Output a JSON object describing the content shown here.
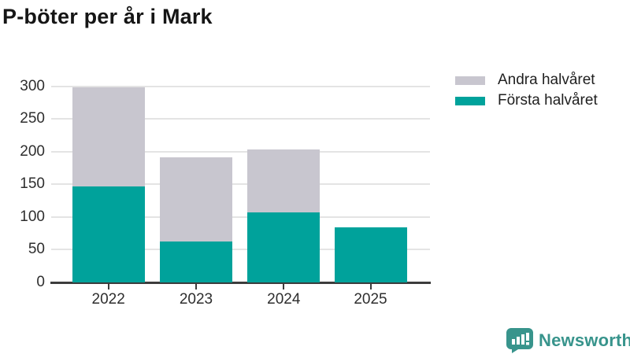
{
  "title": "P-böter per år i Mark",
  "legend": [
    {
      "label": "Andra halvåret",
      "color": "#c8c6cf"
    },
    {
      "label": "Första halvåret",
      "color": "#00a29b"
    }
  ],
  "chart_data": {
    "type": "bar",
    "stacked": true,
    "title": "P-böter per år i Mark",
    "categories": [
      "2022",
      "2023",
      "2024",
      "2025"
    ],
    "series": [
      {
        "name": "Första halvåret",
        "color": "#00a29b",
        "values": [
          147,
          63,
          107,
          85
        ]
      },
      {
        "name": "Andra halvåret",
        "color": "#c8c6cf",
        "values": [
          153,
          129,
          97,
          0
        ]
      }
    ],
    "totals": [
      300,
      192,
      204,
      85
    ],
    "xlabel": "",
    "ylabel": "",
    "ylim": [
      0,
      300
    ],
    "yticks": [
      0,
      50,
      100,
      150,
      200,
      250,
      300
    ],
    "grid": true,
    "legend_position": "top-right"
  },
  "branding": {
    "logo_text": "Newsworthy",
    "logo_icon": "bar-chart-speech-bubble",
    "logo_color": "#38948c"
  },
  "colors": {
    "forsta": "#00a29b",
    "andra": "#c8c6cf",
    "gridline": "#e4e4e4",
    "axis": "#3c3c3c"
  }
}
